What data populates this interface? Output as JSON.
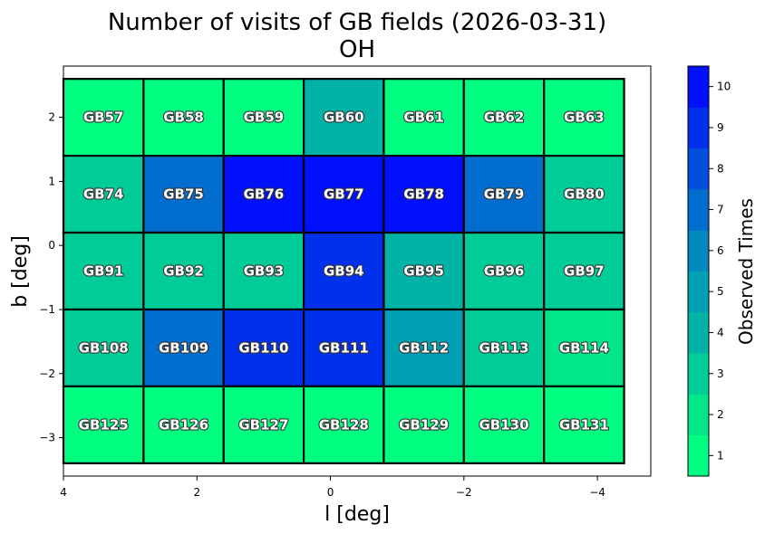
{
  "chart_data": {
    "type": "heatmap",
    "title": "Number of visits of GB fields (2026-03-31)",
    "subtitle": "OH",
    "xlabel": "l [deg]",
    "ylabel": "b [deg]",
    "xlim": [
      4.0,
      -4.8
    ],
    "ylim": [
      -3.6,
      2.8
    ],
    "xticks": [
      4,
      2,
      0,
      -2,
      -4
    ],
    "xtick_labels": [
      "4",
      "2",
      "0",
      "−2",
      "−4"
    ],
    "yticks": [
      2,
      1,
      0,
      -1,
      -2,
      -3
    ],
    "ytick_labels": [
      "2",
      "1",
      "0",
      "−1",
      "−2",
      "−3"
    ],
    "colorbar": {
      "label": "Observed Times",
      "min": 0.5,
      "max": 10.5,
      "ticks": [
        1,
        2,
        3,
        4,
        5,
        6,
        7,
        8,
        9,
        10
      ],
      "colors": [
        "#00ff80",
        "#00e688",
        "#00cc98",
        "#00b3a6",
        "#00a0b4",
        "#0088c0",
        "#006dcf",
        "#0050dd",
        "#0030ec",
        "#0010fa"
      ]
    },
    "cell_width_deg": 1.2,
    "cell_height_deg": 1.2,
    "rows_b": [
      2.0,
      0.8,
      -0.4,
      -1.6,
      -2.8
    ],
    "cols_l": [
      3.4,
      2.2,
      1.0,
      -0.2,
      -1.4,
      -2.6,
      -3.8
    ],
    "fields": [
      [
        {
          "name": "GB57",
          "visits": 1
        },
        {
          "name": "GB58",
          "visits": 1
        },
        {
          "name": "GB59",
          "visits": 1
        },
        {
          "name": "GB60",
          "visits": 4
        },
        {
          "name": "GB61",
          "visits": 1
        },
        {
          "name": "GB62",
          "visits": 1
        },
        {
          "name": "GB63",
          "visits": 1
        }
      ],
      [
        {
          "name": "GB74",
          "visits": 3
        },
        {
          "name": "GB75",
          "visits": 7
        },
        {
          "name": "GB76",
          "visits": 10
        },
        {
          "name": "GB77",
          "visits": 10
        },
        {
          "name": "GB78",
          "visits": 10
        },
        {
          "name": "GB79",
          "visits": 7
        },
        {
          "name": "GB80",
          "visits": 3
        }
      ],
      [
        {
          "name": "GB91",
          "visits": 3
        },
        {
          "name": "GB92",
          "visits": 3
        },
        {
          "name": "GB93",
          "visits": 3
        },
        {
          "name": "GB94",
          "visits": 9
        },
        {
          "name": "GB95",
          "visits": 4
        },
        {
          "name": "GB96",
          "visits": 3
        },
        {
          "name": "GB97",
          "visits": 3
        }
      ],
      [
        {
          "name": "GB108",
          "visits": 3
        },
        {
          "name": "GB109",
          "visits": 7
        },
        {
          "name": "GB110",
          "visits": 9
        },
        {
          "name": "GB111",
          "visits": 9
        },
        {
          "name": "GB112",
          "visits": 5
        },
        {
          "name": "GB113",
          "visits": 3
        },
        {
          "name": "GB114",
          "visits": 2
        }
      ],
      [
        {
          "name": "GB125",
          "visits": 1
        },
        {
          "name": "GB126",
          "visits": 1
        },
        {
          "name": "GB127",
          "visits": 1
        },
        {
          "name": "GB128",
          "visits": 1
        },
        {
          "name": "GB129",
          "visits": 1
        },
        {
          "name": "GB130",
          "visits": 1
        },
        {
          "name": "GB131",
          "visits": 1
        }
      ]
    ]
  }
}
